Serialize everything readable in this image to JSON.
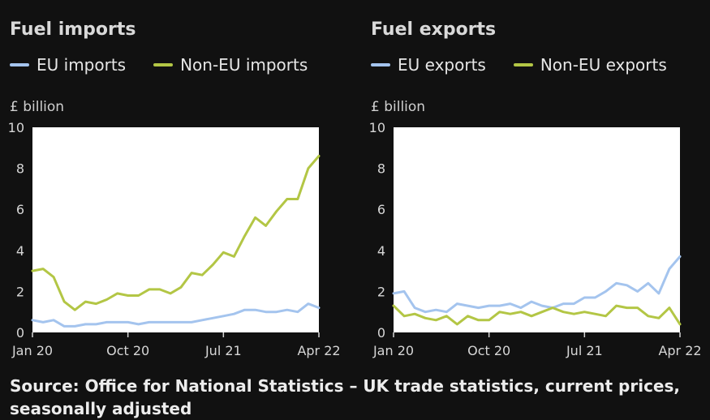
{
  "colors": {
    "eu": "#a4c4ee",
    "non_eu": "#b3c645",
    "plot_bg": "#ffffff",
    "page_bg": "#111111"
  },
  "source": "Source: Office for National Statistics – UK trade statistics, current prices, seasonally adjusted",
  "chart_data": [
    {
      "type": "line",
      "title": "Fuel imports",
      "ylabel": "£ billion",
      "ylim": [
        0,
        10
      ],
      "yticks": [
        "0",
        "2",
        "4",
        "6",
        "8",
        "10"
      ],
      "xticks": [
        "Jan 20",
        "Oct 20",
        "Jul 21",
        "Apr 22"
      ],
      "xtick_index": [
        0,
        9,
        18,
        27
      ],
      "x": [
        "Jan 20",
        "Feb 20",
        "Mar 20",
        "Apr 20",
        "May 20",
        "Jun 20",
        "Jul 20",
        "Aug 20",
        "Sep 20",
        "Oct 20",
        "Nov 20",
        "Dec 20",
        "Jan 21",
        "Feb 21",
        "Mar 21",
        "Apr 21",
        "May 21",
        "Jun 21",
        "Jul 21",
        "Aug 21",
        "Sep 21",
        "Oct 21",
        "Nov 21",
        "Dec 21",
        "Jan 22",
        "Feb 22",
        "Mar 22",
        "Apr 22"
      ],
      "legend_position": "top-left",
      "grid": false,
      "series": [
        {
          "name": "EU imports",
          "color": "#a4c4ee",
          "values": [
            0.6,
            0.5,
            0.6,
            0.3,
            0.3,
            0.4,
            0.4,
            0.5,
            0.5,
            0.5,
            0.4,
            0.5,
            0.5,
            0.5,
            0.5,
            0.5,
            0.6,
            0.7,
            0.8,
            0.9,
            1.1,
            1.1,
            1.0,
            1.0,
            1.1,
            1.0,
            1.4,
            1.2
          ]
        },
        {
          "name": "Non-EU imports",
          "color": "#b3c645",
          "values": [
            3.0,
            3.1,
            2.7,
            1.5,
            1.1,
            1.5,
            1.4,
            1.6,
            1.9,
            1.8,
            1.8,
            2.1,
            2.1,
            1.9,
            2.2,
            2.9,
            2.8,
            3.3,
            3.9,
            3.7,
            4.7,
            5.6,
            5.2,
            5.9,
            6.5,
            6.5,
            8.0,
            8.6
          ]
        }
      ]
    },
    {
      "type": "line",
      "title": "Fuel exports",
      "ylabel": "£ billion",
      "ylim": [
        0,
        10
      ],
      "yticks": [
        "0",
        "2",
        "4",
        "6",
        "8",
        "10"
      ],
      "xticks": [
        "Jan 20",
        "Oct 20",
        "Jul 21",
        "Apr 22"
      ],
      "xtick_index": [
        0,
        9,
        18,
        27
      ],
      "x": [
        "Jan 20",
        "Feb 20",
        "Mar 20",
        "Apr 20",
        "May 20",
        "Jun 20",
        "Jul 20",
        "Aug 20",
        "Sep 20",
        "Oct 20",
        "Nov 20",
        "Dec 20",
        "Jan 21",
        "Feb 21",
        "Mar 21",
        "Apr 21",
        "May 21",
        "Jun 21",
        "Jul 21",
        "Aug 21",
        "Sep 21",
        "Oct 21",
        "Nov 21",
        "Dec 21",
        "Jan 22",
        "Feb 22",
        "Mar 22",
        "Apr 22"
      ],
      "legend_position": "top-left",
      "grid": false,
      "series": [
        {
          "name": "EU exports",
          "color": "#a4c4ee",
          "values": [
            1.9,
            2.0,
            1.2,
            1.0,
            1.1,
            1.0,
            1.4,
            1.3,
            1.2,
            1.3,
            1.3,
            1.4,
            1.2,
            1.5,
            1.3,
            1.2,
            1.4,
            1.4,
            1.7,
            1.7,
            2.0,
            2.4,
            2.3,
            2.0,
            2.4,
            1.9,
            3.1,
            3.7
          ]
        },
        {
          "name": "Non-EU exports",
          "color": "#b3c645",
          "values": [
            1.3,
            0.8,
            0.9,
            0.7,
            0.6,
            0.8,
            0.4,
            0.8,
            0.6,
            0.6,
            1.0,
            0.9,
            1.0,
            0.8,
            1.0,
            1.2,
            1.0,
            0.9,
            1.0,
            0.9,
            0.8,
            1.3,
            1.2,
            1.2,
            0.8,
            0.7,
            1.2,
            0.4
          ]
        }
      ]
    }
  ]
}
